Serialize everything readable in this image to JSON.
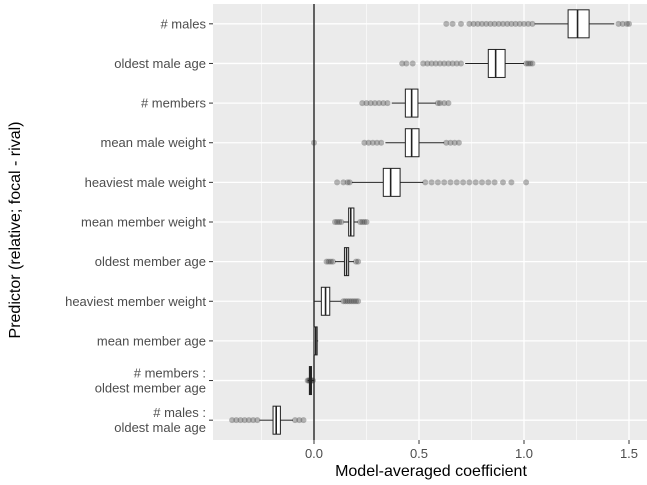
{
  "chart_data": {
    "type": "boxplot",
    "title": "",
    "xlabel": "Model-averaged coefficient",
    "ylabel": "Predictor (relative; focal - rival)",
    "xlim": [
      -0.4,
      1.58
    ],
    "x_ticks": [
      0.0,
      0.5,
      1.0,
      1.5
    ],
    "x_tick_labels": [
      "0.0",
      "0.5",
      "1.0",
      "1.5"
    ],
    "reference_line_x": 0,
    "grid": true,
    "legend": "none",
    "colors": {
      "panel": "#ebebeb",
      "grid": "#ffffff",
      "box_fill": "#ffffff",
      "line": "#222222",
      "outlier": "#333333"
    },
    "categories": [
      {
        "label": [
          "# males"
        ],
        "min": 1.05,
        "q1": 1.21,
        "median": 1.255,
        "q3": 1.31,
        "max": 1.43,
        "outliers": [
          0.63,
          0.66,
          0.7,
          0.74,
          0.76,
          0.78,
          0.8,
          0.82,
          0.84,
          0.86,
          0.88,
          0.9,
          0.92,
          0.94,
          0.96,
          0.98,
          1.0,
          1.02,
          1.04,
          1.45,
          1.47,
          1.49,
          1.5
        ]
      },
      {
        "label": [
          "oldest male age"
        ],
        "min": 0.72,
        "q1": 0.83,
        "median": 0.865,
        "q3": 0.91,
        "max": 1.0,
        "outliers": [
          0.42,
          0.44,
          0.47,
          0.52,
          0.54,
          0.56,
          0.58,
          0.6,
          0.62,
          0.64,
          0.66,
          0.68,
          0.7,
          1.01,
          1.02,
          1.03,
          1.04
        ]
      },
      {
        "label": [
          "# members"
        ],
        "min": 0.37,
        "q1": 0.435,
        "median": 0.465,
        "q3": 0.495,
        "max": 0.58,
        "outliers": [
          0.23,
          0.25,
          0.27,
          0.29,
          0.31,
          0.33,
          0.35,
          0.59,
          0.6,
          0.62,
          0.64
        ]
      },
      {
        "label": [
          "mean male weight"
        ],
        "min": 0.34,
        "q1": 0.435,
        "median": 0.465,
        "q3": 0.5,
        "max": 0.62,
        "outliers": [
          0.0,
          0.24,
          0.26,
          0.28,
          0.3,
          0.32,
          0.63,
          0.65,
          0.67,
          0.69
        ]
      },
      {
        "label": [
          "heaviest male weight"
        ],
        "min": 0.18,
        "q1": 0.33,
        "median": 0.365,
        "q3": 0.41,
        "max": 0.52,
        "outliers": [
          0.11,
          0.14,
          0.16,
          0.17,
          0.53,
          0.56,
          0.59,
          0.62,
          0.65,
          0.68,
          0.71,
          0.74,
          0.77,
          0.8,
          0.83,
          0.86,
          0.9,
          0.94,
          1.01
        ]
      },
      {
        "label": [
          "mean member weight"
        ],
        "min": 0.14,
        "q1": 0.165,
        "median": 0.175,
        "q3": 0.19,
        "max": 0.21,
        "outliers": [
          0.1,
          0.11,
          0.12,
          0.13,
          0.22,
          0.23,
          0.24,
          0.25
        ]
      },
      {
        "label": [
          "oldest member age"
        ],
        "min": 0.1,
        "q1": 0.145,
        "median": 0.155,
        "q3": 0.165,
        "max": 0.19,
        "outliers": [
          0.06,
          0.07,
          0.08,
          0.09,
          0.2,
          0.21
        ]
      },
      {
        "label": [
          "heaviest member weight"
        ],
        "min": 0.0,
        "q1": 0.035,
        "median": 0.055,
        "q3": 0.075,
        "max": 0.13,
        "outliers": [
          0.14,
          0.15,
          0.16,
          0.17,
          0.18,
          0.19,
          0.2,
          0.21
        ]
      },
      {
        "label": [
          "mean member age"
        ],
        "min": 0.0,
        "q1": 0.0,
        "median": 0.008,
        "q3": 0.015,
        "max": 0.02,
        "outliers": []
      },
      {
        "label": [
          "# members :",
          "oldest member age"
        ],
        "min": -0.03,
        "q1": -0.022,
        "median": -0.018,
        "q3": -0.012,
        "max": 0.0,
        "outliers": [
          -0.03,
          -0.025,
          -0.02,
          -0.015,
          -0.01,
          -0.005
        ]
      },
      {
        "label": [
          "# males :",
          "oldest male age"
        ],
        "min": -0.26,
        "q1": -0.195,
        "median": -0.18,
        "q3": -0.16,
        "max": -0.1,
        "outliers": [
          -0.39,
          -0.37,
          -0.35,
          -0.33,
          -0.31,
          -0.29,
          -0.27,
          -0.09,
          -0.07,
          -0.05
        ]
      }
    ]
  }
}
